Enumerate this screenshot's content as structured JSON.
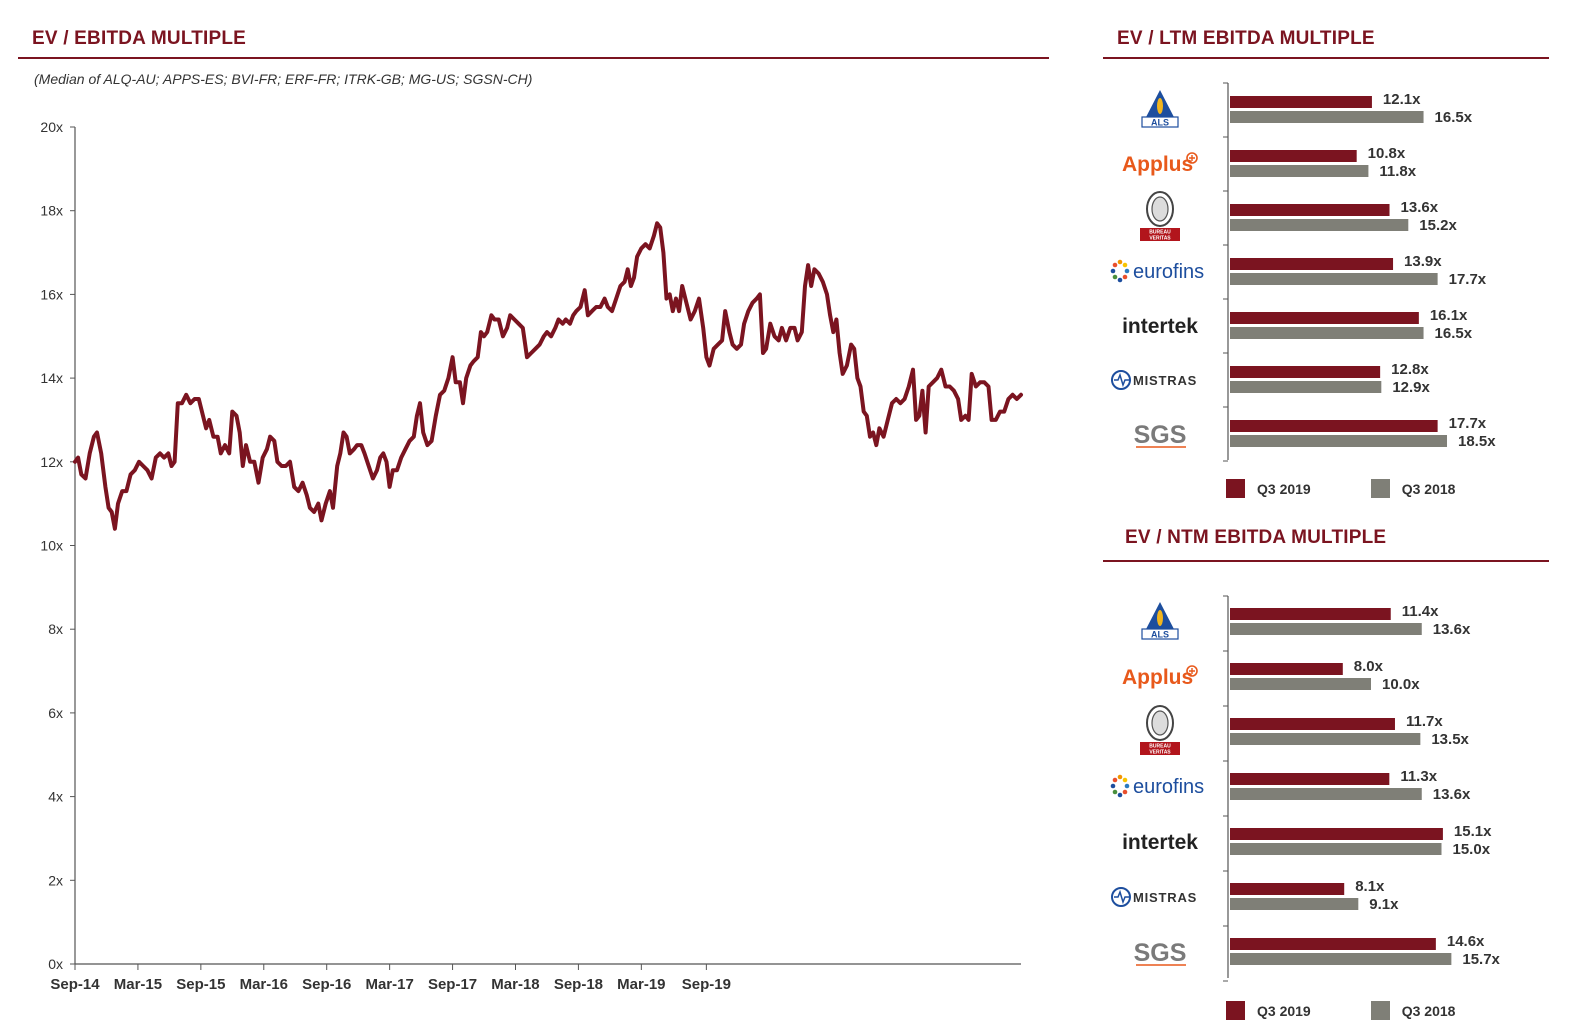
{
  "colors": {
    "accent": "#7b1420",
    "q3_2019": "#7b1420",
    "q3_2018": "#7f7f77",
    "axis": "#555555"
  },
  "left": {
    "title": "EV / EBITDA MULTIPLE",
    "subtitle": "(Median of ALQ-AU; APPS-ES; BVI-FR; ERF-FR; ITRK-GB; MG-US; SGSN-CH)"
  },
  "ltm": {
    "title": "EV / LTM EBITDA MULTIPLE"
  },
  "ntm": {
    "title": "EV / NTM EBITDA MULTIPLE"
  },
  "legend": {
    "q3_2019": "Q3 2019",
    "q3_2018": "Q3 2018"
  },
  "logos": [
    {
      "id": "als",
      "text": "ALS",
      "icon": "als-logo-icon"
    },
    {
      "id": "applus",
      "text": "Applus",
      "icon": "applus-logo-icon"
    },
    {
      "id": "bureau-veritas",
      "text": "BUREAU VERITAS",
      "icon": "bureau-veritas-logo-icon"
    },
    {
      "id": "eurofins",
      "text": "eurofins",
      "icon": "eurofins-logo-icon"
    },
    {
      "id": "intertek",
      "text": "intertek",
      "icon": "intertek-logo-icon"
    },
    {
      "id": "mistras",
      "text": "MISTRAS",
      "icon": "mistras-logo-icon"
    },
    {
      "id": "sgs",
      "text": "SGS",
      "icon": "sgs-logo-icon"
    }
  ],
  "chart_data": [
    {
      "type": "line",
      "title": "EV / EBITDA MULTIPLE",
      "subtitle": "(Median of ALQ-AU; APPS-ES; BVI-FR; ERF-FR; ITRK-GB; MG-US; SGSN-CH)",
      "y_ticks": [
        "0x",
        "2x",
        "4x",
        "6x",
        "8x",
        "10x",
        "12x",
        "14x",
        "16x",
        "18x",
        "20x"
      ],
      "x_ticks": [
        "Sep-14",
        "Mar-15",
        "Sep-15",
        "Mar-16",
        "Sep-16",
        "Mar-17",
        "Sep-17",
        "Mar-18",
        "Sep-18",
        "Mar-19",
        "Sep-19"
      ],
      "ylim": [
        0,
        20
      ],
      "x_unit": "months since Sep-14",
      "grid": false,
      "legend": "none",
      "points": [
        [
          0,
          12.0
        ],
        [
          0.3,
          12.1
        ],
        [
          0.6,
          11.7
        ],
        [
          1.0,
          11.6
        ],
        [
          1.4,
          12.2
        ],
        [
          1.8,
          12.6
        ],
        [
          2.1,
          12.7
        ],
        [
          2.5,
          12.2
        ],
        [
          2.9,
          11.4
        ],
        [
          3.2,
          10.9
        ],
        [
          3.5,
          10.8
        ],
        [
          3.8,
          10.4
        ],
        [
          4.1,
          11.0
        ],
        [
          4.5,
          11.3
        ],
        [
          4.9,
          11.3
        ],
        [
          5.3,
          11.7
        ],
        [
          5.7,
          11.8
        ],
        [
          6.1,
          12.0
        ],
        [
          6.5,
          11.9
        ],
        [
          6.9,
          11.8
        ],
        [
          7.3,
          11.6
        ],
        [
          7.7,
          12.1
        ],
        [
          8.1,
          12.2
        ],
        [
          8.5,
          12.1
        ],
        [
          8.9,
          12.2
        ],
        [
          9.2,
          11.9
        ],
        [
          9.5,
          12.0
        ],
        [
          9.8,
          13.4
        ],
        [
          10.2,
          13.4
        ],
        [
          10.6,
          13.6
        ],
        [
          11.0,
          13.4
        ],
        [
          11.4,
          13.5
        ],
        [
          11.8,
          13.5
        ],
        [
          12.2,
          13.1
        ],
        [
          12.5,
          12.8
        ],
        [
          12.8,
          13.0
        ],
        [
          13.2,
          12.6
        ],
        [
          13.6,
          12.6
        ],
        [
          13.9,
          12.2
        ],
        [
          14.3,
          12.4
        ],
        [
          14.7,
          12.2
        ],
        [
          15.0,
          13.2
        ],
        [
          15.4,
          13.1
        ],
        [
          15.7,
          12.7
        ],
        [
          16.0,
          11.9
        ],
        [
          16.3,
          12.4
        ],
        [
          16.7,
          12.0
        ],
        [
          17.1,
          12.0
        ],
        [
          17.5,
          11.5
        ],
        [
          17.9,
          12.1
        ],
        [
          18.3,
          12.3
        ],
        [
          18.6,
          12.6
        ],
        [
          19.0,
          12.5
        ],
        [
          19.3,
          12.0
        ],
        [
          19.7,
          11.9
        ],
        [
          20.1,
          11.9
        ],
        [
          20.5,
          12.0
        ],
        [
          20.9,
          11.4
        ],
        [
          21.3,
          11.3
        ],
        [
          21.7,
          11.5
        ],
        [
          22.1,
          11.2
        ],
        [
          22.4,
          10.9
        ],
        [
          22.8,
          10.8
        ],
        [
          23.2,
          11.0
        ],
        [
          23.5,
          10.6
        ],
        [
          23.9,
          11.0
        ],
        [
          24.3,
          11.3
        ],
        [
          24.6,
          10.9
        ],
        [
          25.0,
          11.9
        ],
        [
          25.3,
          12.2
        ],
        [
          25.6,
          12.7
        ],
        [
          25.9,
          12.6
        ],
        [
          26.2,
          12.2
        ],
        [
          26.6,
          12.3
        ],
        [
          26.9,
          12.4
        ],
        [
          27.3,
          12.4
        ],
        [
          27.6,
          12.2
        ],
        [
          28.0,
          11.9
        ],
        [
          28.4,
          11.6
        ],
        [
          28.8,
          11.8
        ],
        [
          29.1,
          12.1
        ],
        [
          29.4,
          12.2
        ],
        [
          29.7,
          12.0
        ],
        [
          30.0,
          11.4
        ],
        [
          30.3,
          11.8
        ],
        [
          30.7,
          11.8
        ],
        [
          31.1,
          12.1
        ],
        [
          31.5,
          12.3
        ],
        [
          31.9,
          12.5
        ],
        [
          32.3,
          12.6
        ],
        [
          32.6,
          13.1
        ],
        [
          32.9,
          13.4
        ],
        [
          33.2,
          12.7
        ],
        [
          33.6,
          12.4
        ],
        [
          34.0,
          12.5
        ],
        [
          34.4,
          13.1
        ],
        [
          34.8,
          13.6
        ],
        [
          35.2,
          13.7
        ],
        [
          35.6,
          14.0
        ],
        [
          36.0,
          14.5
        ],
        [
          36.3,
          13.9
        ],
        [
          36.7,
          13.9
        ],
        [
          37.0,
          13.4
        ],
        [
          37.3,
          14.0
        ],
        [
          37.7,
          14.3
        ],
        [
          38.0,
          14.4
        ],
        [
          38.4,
          14.5
        ],
        [
          38.7,
          15.1
        ],
        [
          39.0,
          15.0
        ],
        [
          39.3,
          15.1
        ],
        [
          39.7,
          15.5
        ],
        [
          40.0,
          15.4
        ],
        [
          40.4,
          15.4
        ],
        [
          40.8,
          15.0
        ],
        [
          41.2,
          15.2
        ],
        [
          41.5,
          15.5
        ],
        [
          41.9,
          15.4
        ],
        [
          42.3,
          15.3
        ],
        [
          42.7,
          15.2
        ],
        [
          43.1,
          14.5
        ],
        [
          43.5,
          14.6
        ],
        [
          43.9,
          14.7
        ],
        [
          44.3,
          14.8
        ],
        [
          44.7,
          15.0
        ],
        [
          45.0,
          15.1
        ],
        [
          45.4,
          15.0
        ],
        [
          45.8,
          15.2
        ],
        [
          46.1,
          15.4
        ],
        [
          46.5,
          15.3
        ],
        [
          46.8,
          15.4
        ],
        [
          47.2,
          15.3
        ],
        [
          47.5,
          15.5
        ],
        [
          47.8,
          15.6
        ],
        [
          48.2,
          15.7
        ],
        [
          48.6,
          16.1
        ],
        [
          48.9,
          15.5
        ],
        [
          49.3,
          15.6
        ],
        [
          49.7,
          15.7
        ],
        [
          50.1,
          15.7
        ],
        [
          50.5,
          15.9
        ],
        [
          50.8,
          15.7
        ],
        [
          51.2,
          15.6
        ],
        [
          51.6,
          15.9
        ],
        [
          52.0,
          16.2
        ],
        [
          52.4,
          16.3
        ],
        [
          52.7,
          16.6
        ],
        [
          53.0,
          16.2
        ],
        [
          53.3,
          16.4
        ],
        [
          53.6,
          16.9
        ],
        [
          54.0,
          17.1
        ],
        [
          54.4,
          17.2
        ],
        [
          54.8,
          17.1
        ],
        [
          55.2,
          17.4
        ],
        [
          55.5,
          17.7
        ],
        [
          55.8,
          17.6
        ],
        [
          56.1,
          17.0
        ],
        [
          56.4,
          15.9
        ],
        [
          56.7,
          16.0
        ],
        [
          57.0,
          15.6
        ],
        [
          57.3,
          15.9
        ],
        [
          57.6,
          15.6
        ],
        [
          57.9,
          16.2
        ],
        [
          58.3,
          15.8
        ],
        [
          58.7,
          15.4
        ],
        [
          59.1,
          15.6
        ],
        [
          59.5,
          15.9
        ],
        [
          59.9,
          15.2
        ],
        [
          60.2,
          14.5
        ],
        [
          60.5,
          14.3
        ],
        [
          60.9,
          14.7
        ],
        [
          61.3,
          14.8
        ],
        [
          61.7,
          14.9
        ],
        [
          62.0,
          15.6
        ],
        [
          62.4,
          15.1
        ],
        [
          62.7,
          14.8
        ],
        [
          63.1,
          14.7
        ],
        [
          63.5,
          14.8
        ],
        [
          63.8,
          15.3
        ],
        [
          64.2,
          15.6
        ],
        [
          64.6,
          15.8
        ],
        [
          65.0,
          15.9
        ],
        [
          65.3,
          16.0
        ],
        [
          65.6,
          14.6
        ],
        [
          65.9,
          14.7
        ],
        [
          66.3,
          15.3
        ],
        [
          66.7,
          15.0
        ],
        [
          67.1,
          14.9
        ],
        [
          67.4,
          15.2
        ],
        [
          67.8,
          14.9
        ],
        [
          68.2,
          15.2
        ],
        [
          68.6,
          15.2
        ],
        [
          68.9,
          14.9
        ],
        [
          69.3,
          15.1
        ],
        [
          69.6,
          16.2
        ],
        [
          69.9,
          16.7
        ],
        [
          70.2,
          16.2
        ],
        [
          70.5,
          16.6
        ],
        [
          70.9,
          16.5
        ],
        [
          71.3,
          16.3
        ],
        [
          71.7,
          16.0
        ],
        [
          72.0,
          15.5
        ],
        [
          72.3,
          15.1
        ],
        [
          72.6,
          15.4
        ],
        [
          72.9,
          14.6
        ],
        [
          73.2,
          14.1
        ],
        [
          73.6,
          14.3
        ],
        [
          74.0,
          14.8
        ],
        [
          74.3,
          14.7
        ],
        [
          74.6,
          14.0
        ],
        [
          74.9,
          13.8
        ],
        [
          75.2,
          13.2
        ],
        [
          75.5,
          13.1
        ],
        [
          75.8,
          12.6
        ],
        [
          76.1,
          12.7
        ],
        [
          76.4,
          12.4
        ],
        [
          76.7,
          12.8
        ],
        [
          77.1,
          12.6
        ],
        [
          77.5,
          13.0
        ],
        [
          77.9,
          13.4
        ],
        [
          78.3,
          13.5
        ],
        [
          78.7,
          13.4
        ],
        [
          79.1,
          13.5
        ],
        [
          79.5,
          13.8
        ],
        [
          79.9,
          14.2
        ],
        [
          80.2,
          13.0
        ],
        [
          80.5,
          13.1
        ],
        [
          80.8,
          13.7
        ],
        [
          81.1,
          12.7
        ],
        [
          81.4,
          13.8
        ],
        [
          81.8,
          13.9
        ],
        [
          82.2,
          14.0
        ],
        [
          82.6,
          14.2
        ],
        [
          83.0,
          13.8
        ],
        [
          83.4,
          13.8
        ],
        [
          83.8,
          13.7
        ],
        [
          84.2,
          13.5
        ],
        [
          84.5,
          13.0
        ],
        [
          84.9,
          13.1
        ],
        [
          85.2,
          13.0
        ],
        [
          85.5,
          14.1
        ],
        [
          85.9,
          13.8
        ],
        [
          86.3,
          13.9
        ],
        [
          86.7,
          13.9
        ],
        [
          87.1,
          13.8
        ],
        [
          87.4,
          13.0
        ],
        [
          87.8,
          13.0
        ],
        [
          88.2,
          13.2
        ],
        [
          88.6,
          13.2
        ],
        [
          89.0,
          13.5
        ],
        [
          89.4,
          13.6
        ],
        [
          89.8,
          13.5
        ],
        [
          90.2,
          13.6
        ]
      ]
    },
    {
      "type": "bar",
      "orientation": "horizontal",
      "title": "EV / LTM EBITDA MULTIPLE",
      "categories": [
        "ALS",
        "Applus",
        "Bureau Veritas",
        "eurofins",
        "intertek",
        "MISTRAS",
        "SGS"
      ],
      "legend": "bottom",
      "series": [
        {
          "name": "Q3 2019",
          "values": [
            12.1,
            10.8,
            13.6,
            13.9,
            16.1,
            12.8,
            17.7
          ],
          "labels": [
            "12.1x",
            "10.8x",
            "13.6x",
            "13.9x",
            "16.1x",
            "12.8x",
            "17.7x"
          ]
        },
        {
          "name": "Q3 2018",
          "values": [
            16.5,
            11.8,
            15.2,
            17.7,
            16.5,
            12.9,
            18.5
          ],
          "labels": [
            "16.5x",
            "11.8x",
            "15.2x",
            "17.7x",
            "16.5x",
            "12.9x",
            "18.5x"
          ]
        }
      ]
    },
    {
      "type": "bar",
      "orientation": "horizontal",
      "title": "EV / NTM EBITDA MULTIPLE",
      "categories": [
        "ALS",
        "Applus",
        "Bureau Veritas",
        "eurofins",
        "intertek",
        "MISTRAS",
        "SGS"
      ],
      "legend": "bottom",
      "series": [
        {
          "name": "Q3 2019",
          "values": [
            11.4,
            8.0,
            11.7,
            11.3,
            15.1,
            8.1,
            14.6
          ],
          "labels": [
            "11.4x",
            "8.0x",
            "11.7x",
            "11.3x",
            "15.1x",
            "8.1x",
            "14.6x"
          ]
        },
        {
          "name": "Q3 2018",
          "values": [
            13.6,
            10.0,
            13.5,
            13.6,
            15.0,
            9.1,
            15.7
          ],
          "labels": [
            "13.6x",
            "10.0x",
            "13.5x",
            "13.6x",
            "15.0x",
            "9.1x",
            "15.7x"
          ]
        }
      ]
    }
  ]
}
